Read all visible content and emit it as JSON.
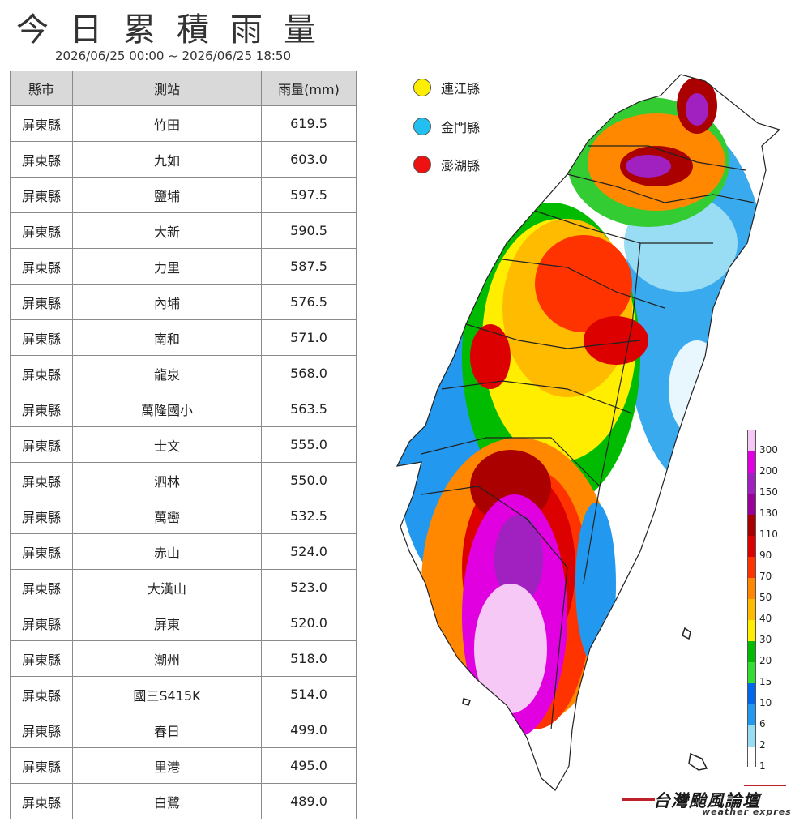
{
  "title": "今日累積雨量",
  "subtitle": "2026/06/25 00:00 ~ 2026/06/25 18:50",
  "table": {
    "headers": [
      "縣市",
      "測站",
      "雨量(mm)"
    ],
    "rows": [
      [
        "屏東縣",
        "竹田",
        "619.5"
      ],
      [
        "屏東縣",
        "九如",
        "603.0"
      ],
      [
        "屏東縣",
        "鹽埔",
        "597.5"
      ],
      [
        "屏東縣",
        "大新",
        "590.5"
      ],
      [
        "屏東縣",
        "力里",
        "587.5"
      ],
      [
        "屏東縣",
        "內埔",
        "576.5"
      ],
      [
        "屏東縣",
        "南和",
        "571.0"
      ],
      [
        "屏東縣",
        "龍泉",
        "568.0"
      ],
      [
        "屏東縣",
        "萬隆國小",
        "563.5"
      ],
      [
        "屏東縣",
        "士文",
        "555.0"
      ],
      [
        "屏東縣",
        "泗林",
        "550.0"
      ],
      [
        "屏東縣",
        "萬巒",
        "532.5"
      ],
      [
        "屏東縣",
        "赤山",
        "524.0"
      ],
      [
        "屏東縣",
        "大漢山",
        "523.0"
      ],
      [
        "屏東縣",
        "屏東",
        "520.0"
      ],
      [
        "屏東縣",
        "潮州",
        "518.0"
      ],
      [
        "屏東縣",
        "國三S415K",
        "514.0"
      ],
      [
        "屏東縣",
        "春日",
        "499.0"
      ],
      [
        "屏東縣",
        "里港",
        "495.0"
      ],
      [
        "屏東縣",
        "白鷺",
        "489.0"
      ]
    ]
  },
  "islands_legend": [
    {
      "label": "連江縣",
      "color": "#ffee00"
    },
    {
      "label": "金門縣",
      "color": "#22c0f0"
    },
    {
      "label": "澎湖縣",
      "color": "#ee1111"
    }
  ],
  "colorbar": {
    "ticks": [
      "300",
      "200",
      "150",
      "130",
      "110",
      "90",
      "70",
      "50",
      "40",
      "30",
      "20",
      "15",
      "10",
      "6",
      "2",
      "1"
    ],
    "colors": [
      "#f5c8f5",
      "#e000e0",
      "#a020c0",
      "#990099",
      "#aa0000",
      "#dd0000",
      "#ff3300",
      "#ff8800",
      "#ffbb00",
      "#ffee00",
      "#00bb00",
      "#33dd33",
      "#0066ee",
      "#2299ee",
      "#99ddf5",
      "#ffffff"
    ]
  },
  "brand": {
    "main": "台灣颱風論壇",
    "sub": "weather express"
  }
}
